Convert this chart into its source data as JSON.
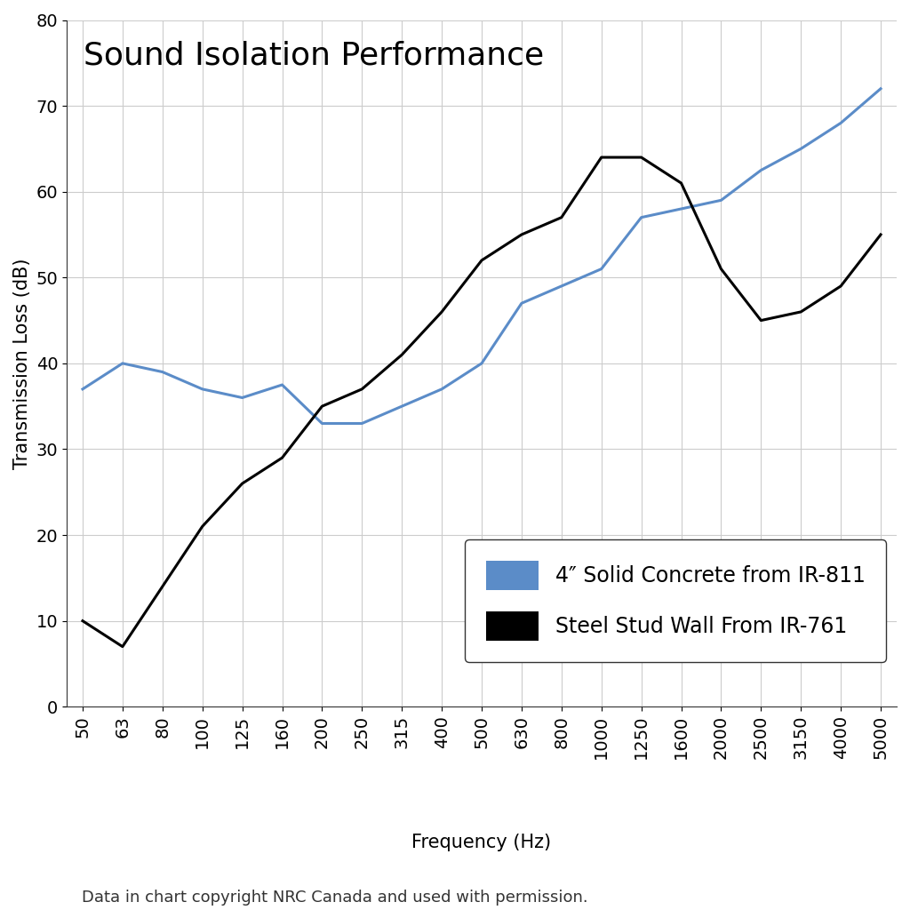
{
  "title": "Sound Isolation Performance",
  "xlabel": "Frequency (Hz)",
  "ylabel": "Transmission Loss (dB)",
  "caption": "Data in chart copyright NRC Canada and used with permission.",
  "x_labels": [
    "50",
    "63",
    "80",
    "100",
    "125",
    "160",
    "200",
    "250",
    "315",
    "400",
    "500",
    "630",
    "800",
    "1000",
    "1250",
    "1600",
    "2000",
    "2500",
    "3150",
    "4000",
    "5000"
  ],
  "x_positions": [
    0,
    1,
    2,
    3,
    4,
    5,
    6,
    7,
    8,
    9,
    10,
    11,
    12,
    13,
    14,
    15,
    16,
    17,
    18,
    19,
    20
  ],
  "concrete_values": [
    37,
    40,
    39,
    37,
    36,
    37.5,
    33,
    33,
    35,
    37,
    40,
    47,
    49,
    51,
    57,
    58,
    59,
    62.5,
    65,
    68,
    72
  ],
  "steel_values": [
    10,
    7,
    14,
    21,
    26,
    29,
    35,
    37,
    41,
    46,
    52,
    55,
    57,
    64,
    64,
    61,
    51,
    45,
    46,
    49,
    55
  ],
  "concrete_color": "#5b8cc8",
  "steel_color": "#000000",
  "background_color": "#ffffff",
  "grid_color": "#cccccc",
  "ylim": [
    0,
    80
  ],
  "yticks": [
    0,
    10,
    20,
    30,
    40,
    50,
    60,
    70,
    80
  ],
  "legend_label_concrete": "4″ Solid Concrete from IR-811",
  "legend_label_steel": "Steel Stud Wall From IR-761",
  "line_width": 2.2,
  "title_fontsize": 26,
  "axis_label_fontsize": 15,
  "tick_fontsize": 14,
  "legend_fontsize": 17,
  "caption_fontsize": 13
}
